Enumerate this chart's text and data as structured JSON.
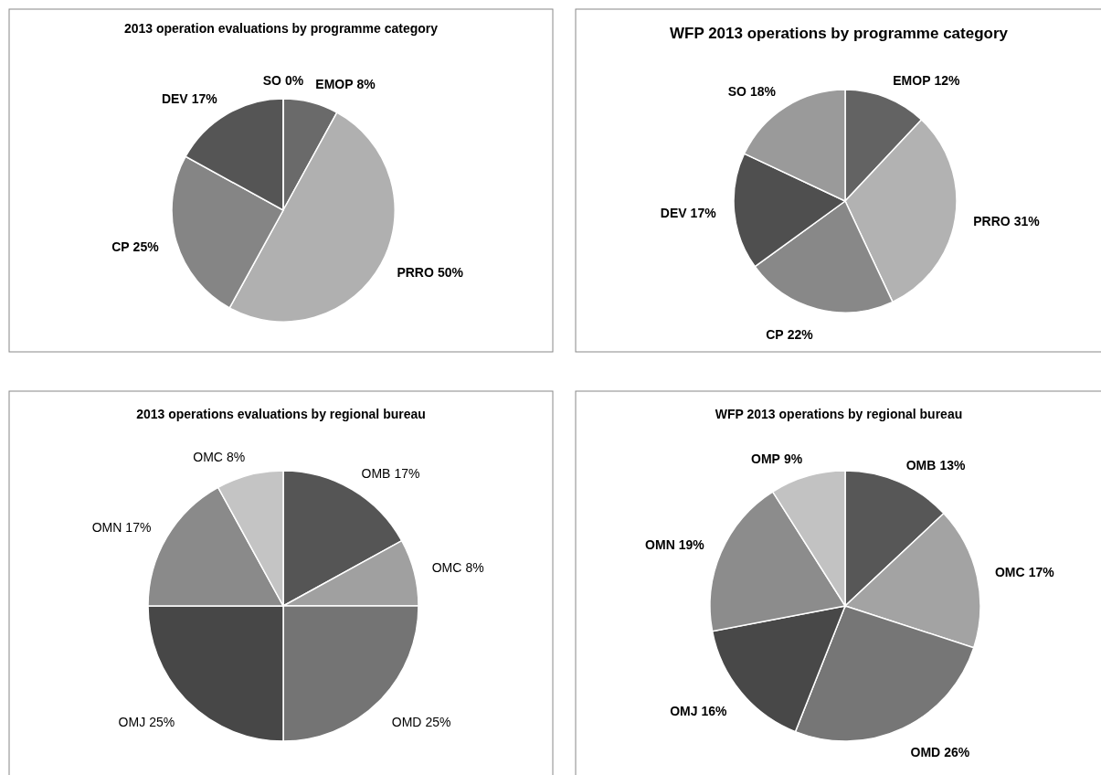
{
  "chart_data": [
    {
      "type": "pie",
      "title": "2013 operation evaluations by programme category",
      "categories": [
        "EMOP",
        "PRRO",
        "CP",
        "DEV",
        "SO"
      ],
      "values": [
        8,
        50,
        25,
        17,
        0
      ],
      "colors": [
        "#6a6a6a",
        "#b0b0b0",
        "#858585",
        "#555555",
        "#9a9a9a"
      ],
      "value_labels": [
        "8%",
        "50%",
        "25%",
        "17%",
        "0%"
      ]
    },
    {
      "type": "pie",
      "title": "WFP 2013 operations by programme category",
      "categories": [
        "EMOP",
        "PRRO",
        "CP",
        "DEV",
        "SO"
      ],
      "values": [
        12,
        31,
        22,
        17,
        18
      ],
      "colors": [
        "#636363",
        "#b2b2b2",
        "#888888",
        "#4f4f4f",
        "#9a9a9a"
      ],
      "value_labels": [
        "12%",
        "31%",
        "22%",
        "17%",
        "18%"
      ]
    },
    {
      "type": "pie",
      "title": "2013 operations evaluations by regional bureau",
      "categories": [
        "OMB",
        "OMC",
        "OMD",
        "OMJ",
        "OMN",
        "OMC"
      ],
      "values": [
        17,
        8,
        25,
        25,
        17,
        8
      ],
      "colors": [
        "#555555",
        "#a0a0a0",
        "#747474",
        "#474747",
        "#8a8a8a",
        "#c4c4c4"
      ],
      "value_labels": [
        "17%",
        "8%",
        "25%",
        "25%",
        "17%",
        "8%"
      ]
    },
    {
      "type": "pie",
      "title": "WFP 2013 operations by regional bureau",
      "categories": [
        "OMB",
        "OMC",
        "OMD",
        "OMJ",
        "OMN",
        "OMP"
      ],
      "values": [
        13,
        17,
        26,
        16,
        19,
        9
      ],
      "colors": [
        "#575757",
        "#a3a3a3",
        "#767676",
        "#484848",
        "#8c8c8c",
        "#c2c2c2"
      ],
      "value_labels": [
        "13%",
        "17%",
        "26%",
        "16%",
        "19%",
        "9%"
      ]
    }
  ]
}
